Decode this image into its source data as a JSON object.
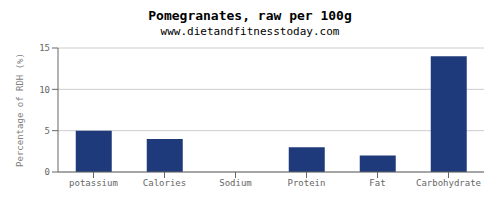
{
  "chart_data": {
    "type": "bar",
    "title": "Pomegranates, raw per 100g",
    "subtitle": "www.dietandfitnesstoday.com",
    "categories": [
      "potassium",
      "Calories",
      "Sodium",
      "Protein",
      "Fat",
      "Carbohydrate"
    ],
    "values": [
      5.0,
      4.0,
      0.0,
      3.0,
      2.0,
      14.0
    ],
    "color": "#1f3a7a",
    "ylabel": "Percentage of RDH (%)",
    "ylim": [
      0,
      15
    ],
    "yticks": [
      0,
      5,
      10,
      15
    ],
    "grid": true
  }
}
